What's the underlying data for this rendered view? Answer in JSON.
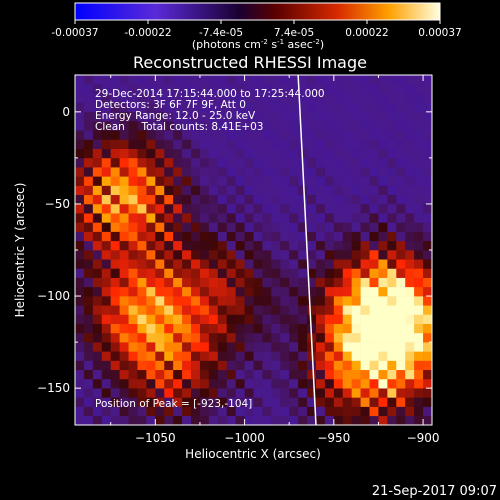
{
  "colorbar": {
    "ticks": [
      "-0.00037",
      "-0.00022",
      "-7.4e-05",
      "7.4e-05",
      "0.00022",
      "0.00037"
    ],
    "range": [
      -0.00037,
      0.00037
    ],
    "units_main": "(photons cm",
    "units_sup1": "-2",
    "units_mid": " s",
    "units_sup2": "-1",
    "units_end": " asec",
    "units_sup3": "-2",
    "units_close": ")"
  },
  "chart_data": {
    "type": "heatmap",
    "title": "Reconstructed RHESSI Image",
    "xlabel": "Heliocentric X (arcsec)",
    "ylabel": "Heliocentric Y (arcsec)",
    "xlim": [
      -1095,
      -895
    ],
    "ylim": [
      -170,
      20
    ],
    "xticks": [
      -1050,
      -1000,
      -950,
      -900
    ],
    "yticks": [
      -150,
      -100,
      -50,
      0
    ],
    "xticklabels": [
      "−1050",
      "−1000",
      "−950",
      "−900"
    ],
    "yticklabels": [
      "−150",
      "−100",
      "−50",
      "0"
    ],
    "info_lines": [
      "29-Dec-2014 17:15:44.000 to 17:25:44.000",
      "Detectors: 3F 6F 7F 9F, Att 0",
      "Energy Range: 12.0 - 25.0 keV",
      "Clean     Total counts: 8.41E+03"
    ],
    "peak_text": "Position of Peak = [-923,-104]",
    "peak_position": [
      -923,
      -104
    ],
    "sources": [
      {
        "x": -1068,
        "y": -45,
        "peak": 0.00034
      },
      {
        "x": -1058,
        "y": -108,
        "peak": 0.00028
      },
      {
        "x": -1040,
        "y": -140,
        "peak": 0.00018
      },
      {
        "x": -1012,
        "y": -95,
        "peak": 0.00016
      },
      {
        "x": -923,
        "y": -104,
        "peak": 0.00037
      },
      {
        "x": -935,
        "y": -140,
        "peak": 0.00024
      },
      {
        "x": -908,
        "y": -125,
        "peak": 0.00022
      }
    ],
    "limb_line": {
      "x_top": -970,
      "y_top": 20,
      "x_bottom": -960,
      "y_bottom": -170
    }
  },
  "footer": {
    "timestamp": "21-Sep-2017 09:07"
  }
}
